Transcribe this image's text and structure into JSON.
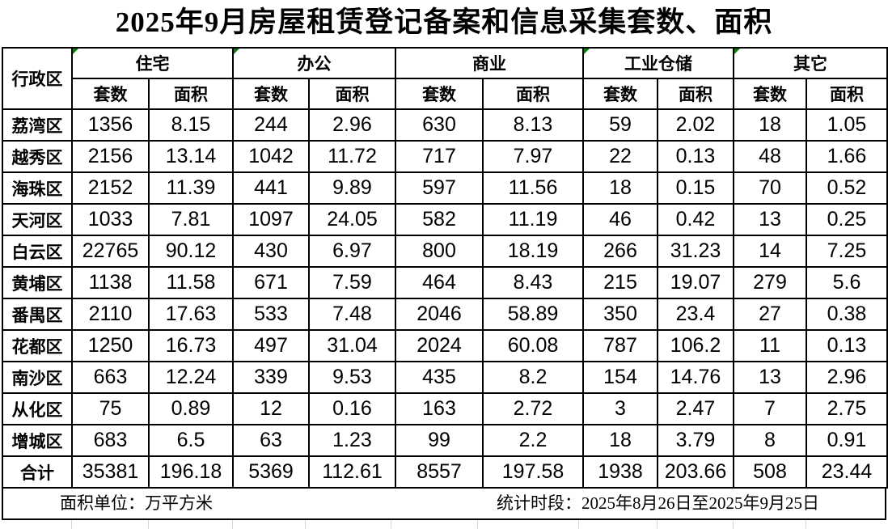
{
  "title": "2025年9月房屋租赁登记备案和信息采集套数、面积",
  "table": {
    "corner_header": "行政区",
    "groups": [
      {
        "label": "住宅",
        "flag": true
      },
      {
        "label": "办公",
        "flag": true
      },
      {
        "label": "商业",
        "flag": false
      },
      {
        "label": "工业仓储",
        "flag": true
      },
      {
        "label": "其它",
        "flag": true
      }
    ],
    "sub_headers": [
      "套数",
      "面积"
    ],
    "rows": [
      {
        "district": "荔湾区",
        "values": [
          "1356",
          "8.15",
          "244",
          "2.96",
          "630",
          "8.13",
          "59",
          "2.02",
          "18",
          "1.05"
        ]
      },
      {
        "district": "越秀区",
        "values": [
          "2156",
          "13.14",
          "1042",
          "11.72",
          "717",
          "7.97",
          "22",
          "0.13",
          "48",
          "1.66"
        ]
      },
      {
        "district": "海珠区",
        "values": [
          "2152",
          "11.39",
          "441",
          "9.89",
          "597",
          "11.56",
          "18",
          "0.15",
          "70",
          "0.52"
        ]
      },
      {
        "district": "天河区",
        "values": [
          "1033",
          "7.81",
          "1097",
          "24.05",
          "582",
          "11.19",
          "46",
          "0.42",
          "13",
          "0.25"
        ]
      },
      {
        "district": "白云区",
        "values": [
          "22765",
          "90.12",
          "430",
          "6.97",
          "800",
          "18.19",
          "266",
          "31.23",
          "14",
          "7.25"
        ]
      },
      {
        "district": "黄埔区",
        "values": [
          "1138",
          "11.58",
          "671",
          "7.59",
          "464",
          "8.43",
          "215",
          "19.07",
          "279",
          "5.6"
        ]
      },
      {
        "district": "番禺区",
        "values": [
          "2110",
          "17.63",
          "533",
          "7.48",
          "2046",
          "58.89",
          "350",
          "23.4",
          "27",
          "0.38"
        ]
      },
      {
        "district": "花都区",
        "values": [
          "1250",
          "16.73",
          "497",
          "31.04",
          "2024",
          "60.08",
          "787",
          "106.2",
          "11",
          "0.13"
        ]
      },
      {
        "district": "南沙区",
        "values": [
          "663",
          "12.24",
          "339",
          "9.53",
          "435",
          "8.2",
          "154",
          "14.76",
          "13",
          "2.96"
        ]
      },
      {
        "district": "从化区",
        "values": [
          "75",
          "0.89",
          "12",
          "0.16",
          "163",
          "2.72",
          "3",
          "2.47",
          "7",
          "2.75"
        ]
      },
      {
        "district": "增城区",
        "values": [
          "683",
          "6.5",
          "63",
          "1.23",
          "99",
          "2.2",
          "18",
          "3.79",
          "8",
          "0.91"
        ]
      },
      {
        "district": "合计",
        "values": [
          "35381",
          "196.18",
          "5369",
          "112.61",
          "8557",
          "197.58",
          "1938",
          "203.66",
          "508",
          "23.44"
        ]
      }
    ]
  },
  "footer": {
    "area_unit": "面积单位：万平方米",
    "period": "统计时段：2025年8月26日至2025年9月25日"
  },
  "colors": {
    "border": "#000000",
    "error_flag_green": "#0f7b0f",
    "gridline_gray": "#d6d6d6",
    "background": "#ffffff",
    "text": "#000000"
  }
}
